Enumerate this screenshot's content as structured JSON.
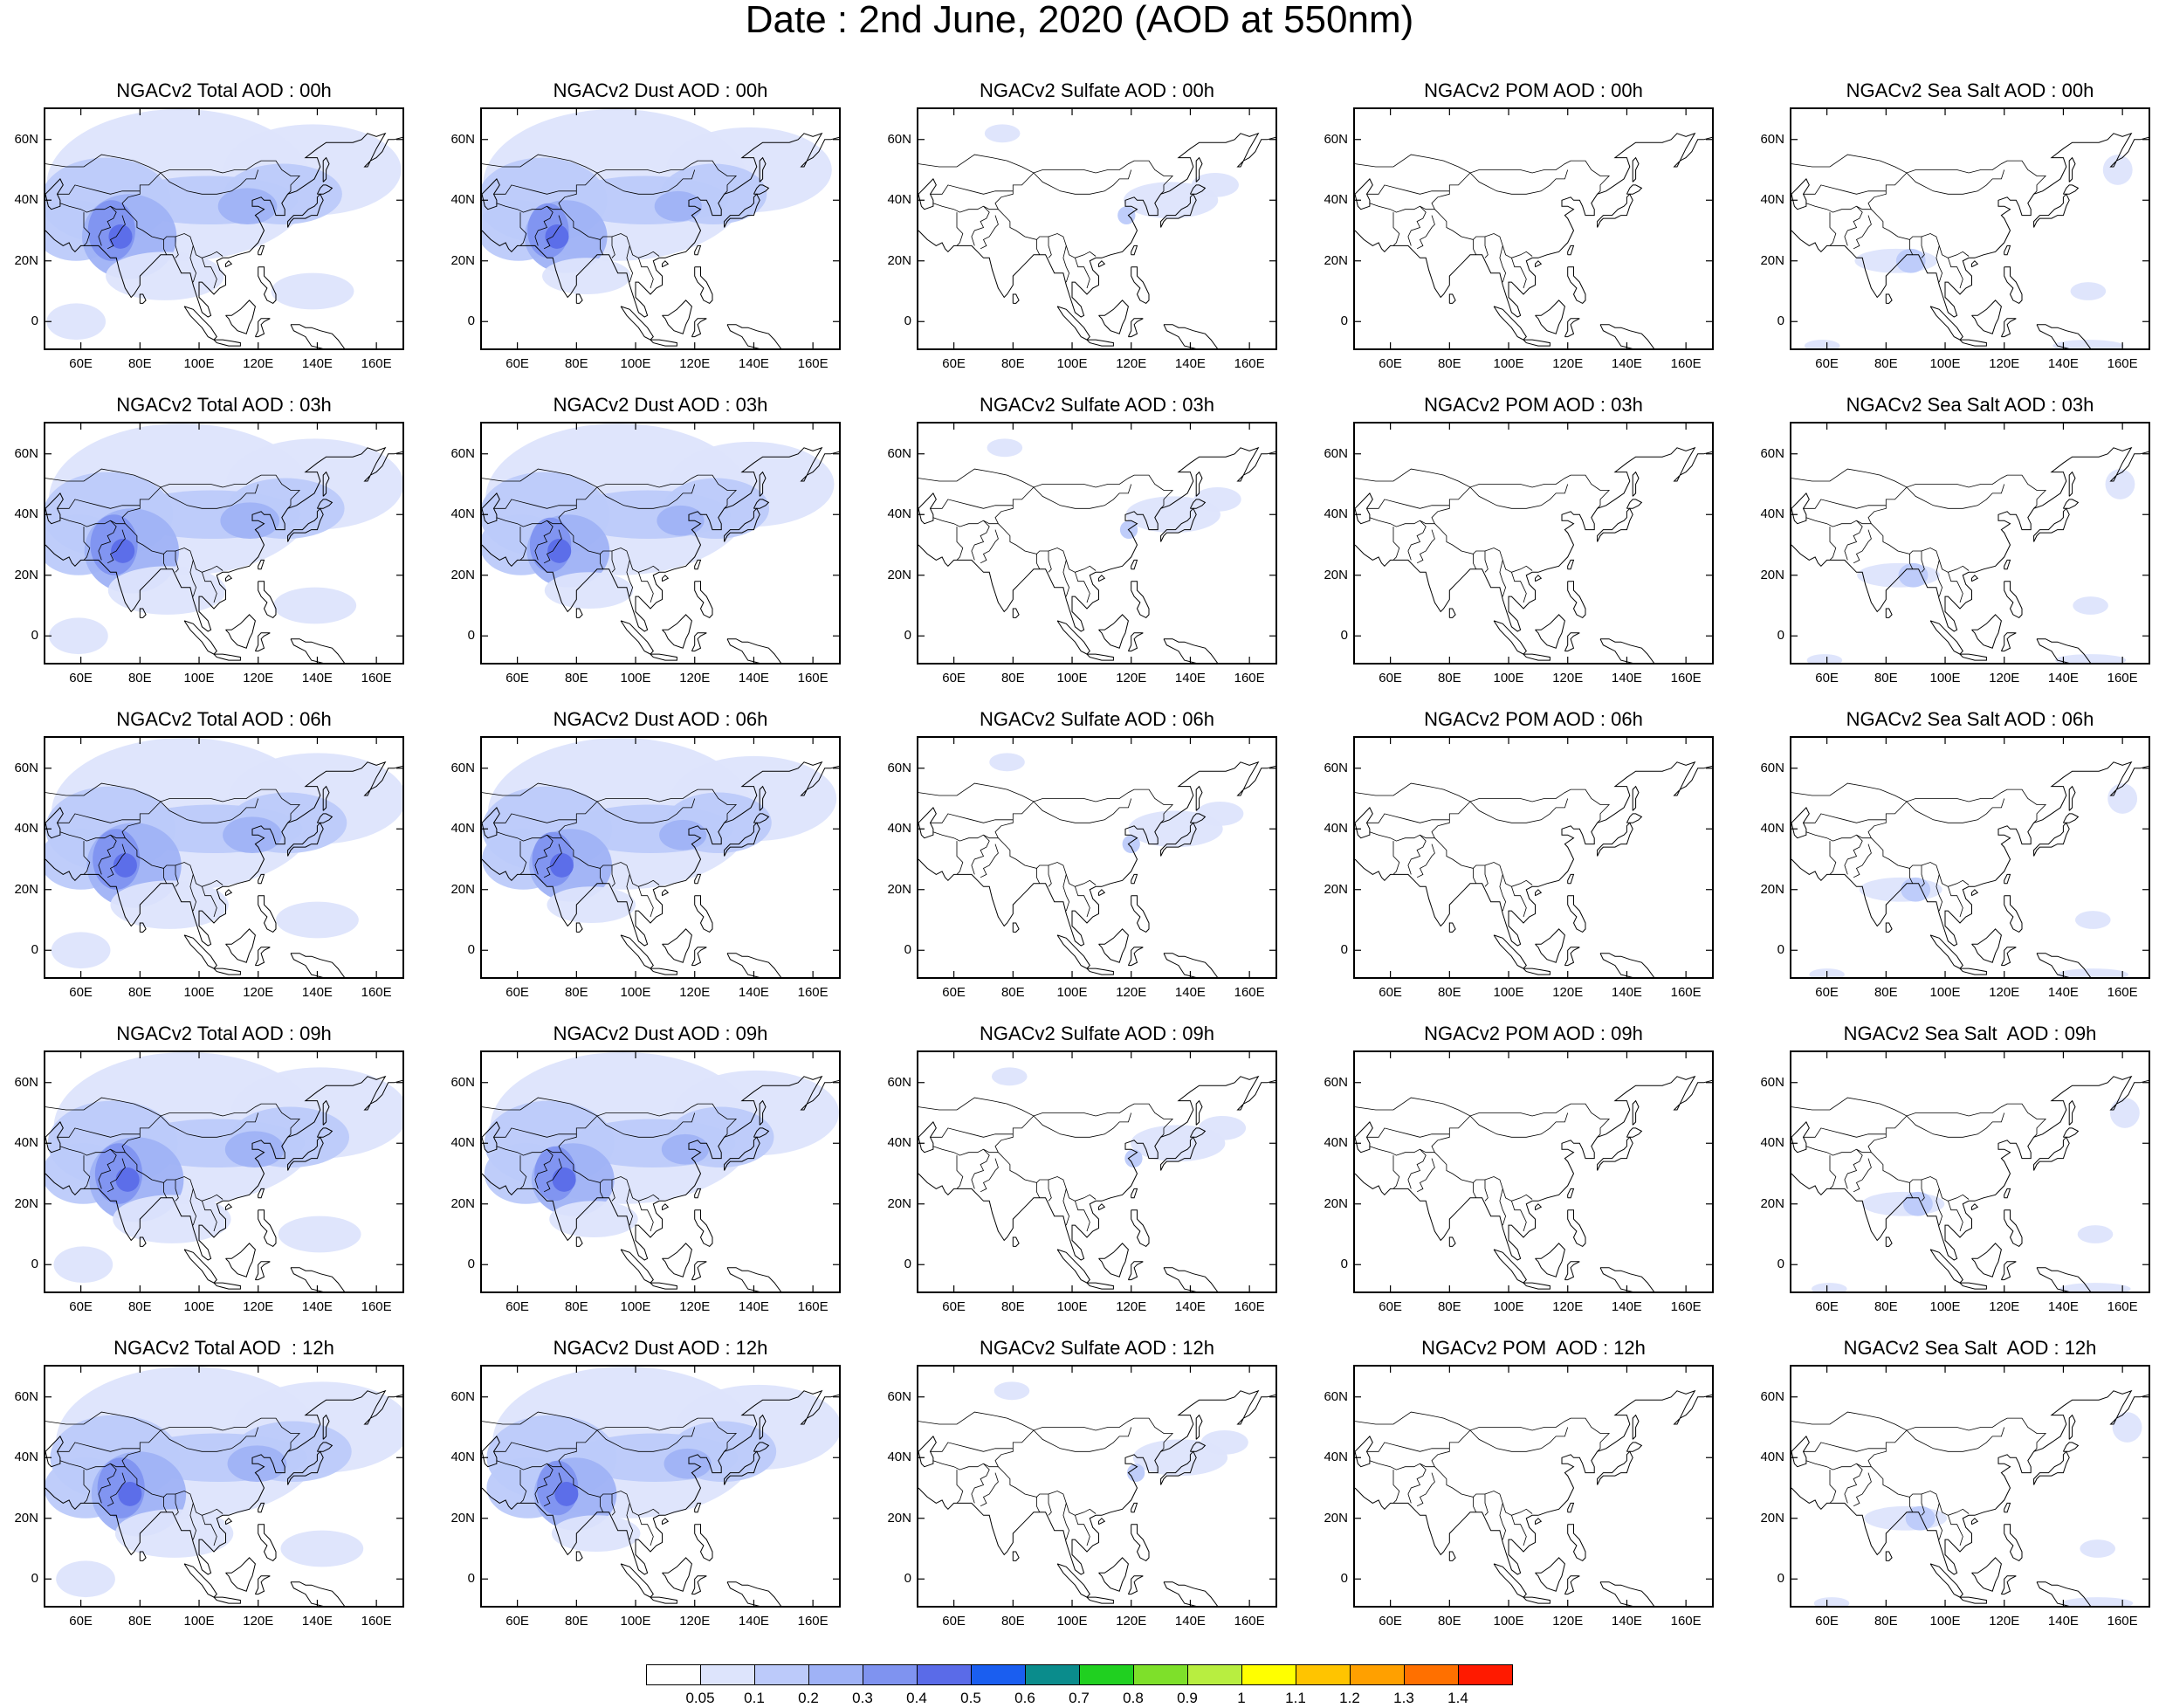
{
  "title": "Date : 2nd June, 2020 (AOD at 550nm)",
  "panels": [
    [
      "NGACv2 Total AOD : 00h",
      "NGACv2 Dust AOD : 00h",
      "NGACv2 Sulfate AOD : 00h",
      "NGACv2 POM AOD : 00h",
      "NGACv2 Sea Salt AOD : 00h"
    ],
    [
      "NGACv2 Total AOD : 03h",
      "NGACv2 Dust AOD : 03h",
      "NGACv2 Sulfate AOD : 03h",
      "NGACv2 POM AOD : 03h",
      "NGACv2 Sea Salt AOD : 03h"
    ],
    [
      "NGACv2 Total AOD : 06h",
      "NGACv2 Dust AOD : 06h",
      "NGACv2 Sulfate AOD : 06h",
      "NGACv2 POM AOD : 06h",
      "NGACv2 Sea Salt AOD : 06h"
    ],
    [
      "NGACv2 Total AOD : 09h",
      "NGACv2 Dust AOD : 09h",
      "NGACv2 Sulfate AOD : 09h",
      "NGACv2 POM AOD : 09h",
      "NGACv2 Sea Salt  AOD : 09h"
    ],
    [
      "NGACv2 Total AOD  : 12h",
      "NGACv2 Dust AOD : 12h",
      "NGACv2 Sulfate AOD : 12h",
      "NGACv2 POM  AOD : 12h",
      "NGACv2 Sea Salt  AOD : 12h"
    ]
  ],
  "lat_ticks": [
    "60N",
    "40N",
    "20N",
    "0"
  ],
  "lon_ticks": [
    "60E",
    "80E",
    "100E",
    "120E",
    "140E",
    "160E"
  ],
  "colorbar": {
    "labels": [
      "0.05",
      "0.1",
      "0.2",
      "0.3",
      "0.4",
      "0.5",
      "0.6",
      "0.7",
      "0.8",
      "0.9",
      "1",
      "1.1",
      "1.2",
      "1.3",
      "1.4"
    ],
    "colors": [
      "#ffffff",
      "#dde4fc",
      "#bccafa",
      "#9fb2f6",
      "#7f93f0",
      "#5a6be8",
      "#1a5ef0",
      "#0a8c8c",
      "#20d020",
      "#7ee02a",
      "#b8ee40",
      "#ffff00",
      "#ffc400",
      "#ffa000",
      "#ff7000",
      "#ff1a00"
    ]
  }
}
